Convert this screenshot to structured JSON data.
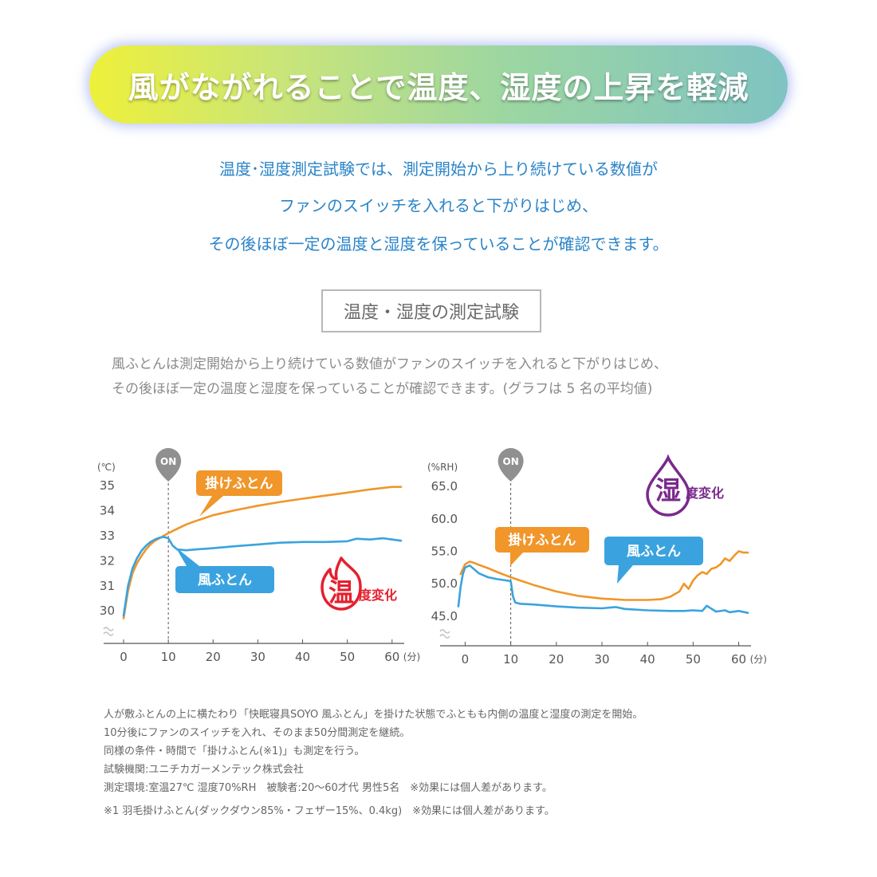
{
  "banner": {
    "title": "風がながれることで温度、湿度の上昇を軽減"
  },
  "intro": {
    "lines": [
      "温度･湿度測定試験では、測定開始から上り続けている数値が",
      "ファンのスイッチを入れると下がりはじめ、",
      "その後ほぼ一定の温度と湿度を保っていることが確認できます。"
    ]
  },
  "section": {
    "title": "温度・湿度の測定試験",
    "desc_lines": [
      "風ふとんは測定開始から上り続けている数値がファンのスイッチを入れると下がりはじめ、",
      "その後ほぼ一定の温度と湿度を保っていることが確認できます。(グラフは 5 名の平均値)"
    ]
  },
  "colors": {
    "orange": "#f0962a",
    "blue": "#3aa3df",
    "red": "#e5202e",
    "purple": "#7a2a8c",
    "axis": "#555555",
    "on_gray": "#909090"
  },
  "chart_data": [
    {
      "type": "line",
      "unit_label": "(℃)",
      "x_unit_label": "(分)",
      "on_label": "ON",
      "on_x": 10,
      "x_ticks": [
        0,
        10,
        20,
        30,
        40,
        50,
        60
      ],
      "y_ticks": [
        30,
        31,
        32,
        33,
        34,
        35
      ],
      "y_tick_labels": [
        "30",
        "31",
        "32",
        "33",
        "34",
        "35"
      ],
      "xlim": [
        0,
        62
      ],
      "ylim": [
        29.4,
        35.1
      ],
      "badge": {
        "char": "温",
        "text": "度変化",
        "icon": "flame-icon",
        "color": "#e5202e"
      },
      "series": [
        {
          "name": "掛けふとん",
          "color": "#f0962a",
          "x": [
            0,
            1,
            2,
            3,
            4,
            5,
            6,
            7,
            8,
            9,
            10,
            12,
            14,
            16,
            18,
            20,
            25,
            30,
            35,
            40,
            45,
            50,
            55,
            60,
            62
          ],
          "y": [
            29.7,
            30.8,
            31.5,
            31.9,
            32.2,
            32.45,
            32.65,
            32.8,
            32.9,
            33.0,
            33.1,
            33.28,
            33.45,
            33.58,
            33.7,
            33.82,
            34.02,
            34.2,
            34.35,
            34.48,
            34.6,
            34.72,
            34.85,
            34.95,
            34.95
          ]
        },
        {
          "name": "風ふとん",
          "color": "#3aa3df",
          "x": [
            0,
            1,
            2,
            3,
            4,
            5,
            6,
            7,
            8,
            9,
            10,
            11,
            12,
            14,
            16,
            20,
            25,
            30,
            35,
            40,
            45,
            50,
            52,
            55,
            58,
            60,
            62
          ],
          "y": [
            29.8,
            31.0,
            31.7,
            32.1,
            32.4,
            32.6,
            32.75,
            32.85,
            32.92,
            32.95,
            32.9,
            32.6,
            32.45,
            32.42,
            32.45,
            32.5,
            32.58,
            32.65,
            32.72,
            32.75,
            32.75,
            32.78,
            32.88,
            32.85,
            32.9,
            32.85,
            32.8
          ]
        }
      ]
    },
    {
      "type": "line",
      "unit_label": "(%RH)",
      "x_unit_label": "(分)",
      "on_label": "ON",
      "on_x": 10,
      "x_ticks": [
        0,
        10,
        20,
        30,
        40,
        50,
        60
      ],
      "y_ticks": [
        45,
        50,
        55,
        60,
        65
      ],
      "y_tick_labels": [
        "45.0",
        "50.0",
        "55.0",
        "60.0",
        "65.0"
      ],
      "xlim": [
        -2,
        62
      ],
      "ylim": [
        43.5,
        65.5
      ],
      "badge": {
        "char": "湿",
        "text": "度変化",
        "icon": "water-drop-icon",
        "color": "#7a2a8c"
      },
      "series": [
        {
          "name": "掛けふとん",
          "color": "#f0962a",
          "x": [
            -1,
            0,
            1,
            2,
            3,
            5,
            7,
            10,
            12,
            15,
            20,
            25,
            30,
            35,
            40,
            43,
            45,
            47,
            48,
            49,
            50,
            51,
            52,
            53,
            54,
            55,
            56,
            57,
            58,
            59,
            60,
            61,
            62
          ],
          "y": [
            51.5,
            53.0,
            53.4,
            53.2,
            52.9,
            52.4,
            51.8,
            51.0,
            50.5,
            49.8,
            48.8,
            48.1,
            47.7,
            47.5,
            47.5,
            47.6,
            48.0,
            48.8,
            50.0,
            49.2,
            50.5,
            51.3,
            51.8,
            51.5,
            52.3,
            52.5,
            53.0,
            53.9,
            53.5,
            54.3,
            55.0,
            54.8,
            54.8
          ]
        },
        {
          "name": "風ふとん",
          "color": "#3aa3df",
          "x": [
            -1.5,
            -1,
            -0.5,
            0,
            1,
            2,
            3,
            5,
            7,
            9,
            10,
            10.5,
            11,
            12,
            15,
            20,
            25,
            30,
            33,
            35,
            40,
            45,
            48,
            50,
            52,
            53,
            55,
            57,
            58,
            60,
            62
          ],
          "y": [
            46.5,
            49.5,
            51.5,
            52.5,
            52.8,
            52.2,
            51.6,
            51.0,
            50.7,
            50.5,
            50.4,
            48.0,
            47.1,
            46.9,
            46.8,
            46.5,
            46.3,
            46.2,
            46.4,
            46.1,
            45.9,
            45.8,
            45.8,
            45.9,
            45.8,
            46.6,
            45.7,
            45.9,
            45.6,
            45.8,
            45.5
          ]
        }
      ]
    }
  ],
  "footnotes": {
    "lines": [
      "人が敷ふとんの上に横たわり「快眠寝具SOYO 風ふとん」を掛けた状態でふともも内側の温度と湿度の測定を開始。",
      "10分後にファンのスイッチを入れ、そのまま50分間測定を継続。",
      "同様の条件・時間で「掛けふとん(※1)」も測定を行う。",
      "試験機関:ユニチカガーメンテック株式会社",
      "測定環境:室温27℃ 湿度70%RH　被験者:20〜60才代 男性5名　※効果には個人差があります。"
    ],
    "note": "※1 羽毛掛けふとん(ダックダウン85%・フェザー15%、0.4kg)　※効果には個人差があります。"
  }
}
